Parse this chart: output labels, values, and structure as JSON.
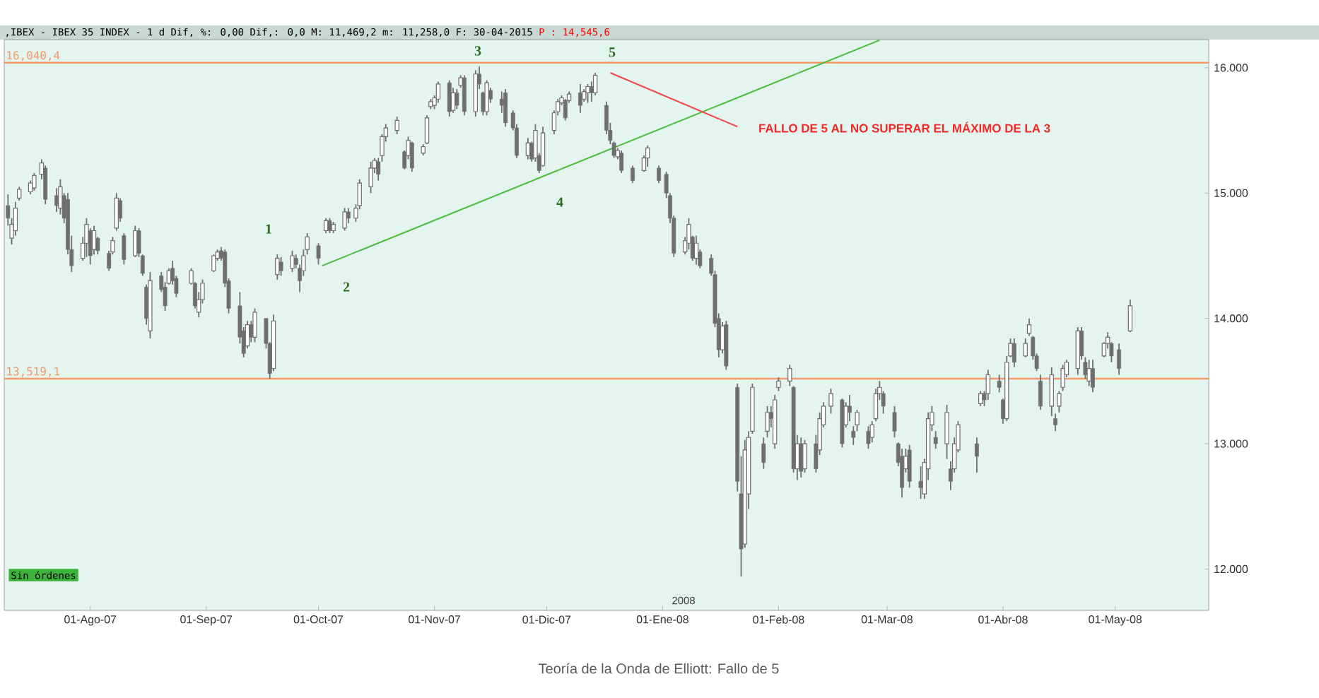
{
  "chart_data": {
    "type": "candlestick",
    "title": ",IBEX - IBEX 35 INDEX -  1 d Dif, %: 0,00 Dif,: 0,0 M: 11,469,2 m: 11,258,0 F: 30-04-2015",
    "subtitle": "P : 14,545,6",
    "color": "#6e6e6e",
    "x": [
      "2007-07-10",
      "2007-07-11",
      "2007-07-12",
      "2007-07-13",
      "2007-07-16",
      "2007-07-17",
      "2007-07-19",
      "2007-07-20",
      "2007-07-23",
      "2007-07-24",
      "2007-07-25",
      "2007-07-26",
      "2007-07-27",
      "2007-07-30",
      "2007-07-31",
      "2007-08-01",
      "2007-08-02",
      "2007-08-03",
      "2007-08-06",
      "2007-08-07",
      "2007-08-08",
      "2007-08-09",
      "2007-08-10",
      "2007-08-13",
      "2007-08-14",
      "2007-08-15",
      "2007-08-16",
      "2007-08-17",
      "2007-08-20",
      "2007-08-21",
      "2007-08-22",
      "2007-08-23",
      "2007-08-24",
      "2007-08-28",
      "2007-08-29",
      "2007-08-30",
      "2007-08-31",
      "2007-09-03",
      "2007-09-04",
      "2007-09-05",
      "2007-09-06",
      "2007-09-07",
      "2007-09-10",
      "2007-09-11",
      "2007-09-12",
      "2007-09-13",
      "2007-09-14",
      "2007-09-17",
      "2007-09-18",
      "2007-09-19",
      "2007-09-20",
      "2007-09-21",
      "2007-09-24",
      "2007-09-25",
      "2007-09-26",
      "2007-09-27",
      "2007-09-28",
      "2007-10-01",
      "2007-10-03",
      "2007-10-04",
      "2007-10-05",
      "2007-10-08",
      "2007-10-09",
      "2007-10-11",
      "2007-10-12",
      "2007-10-15",
      "2007-10-16",
      "2007-10-17",
      "2007-10-18",
      "2007-10-19",
      "2007-10-22",
      "2007-10-24",
      "2007-10-25",
      "2007-10-26",
      "2007-10-29",
      "2007-10-30",
      "2007-10-31",
      "2007-11-01",
      "2007-11-02",
      "2007-11-05",
      "2007-11-06",
      "2007-11-07",
      "2007-11-08",
      "2007-11-09",
      "2007-11-12",
      "2007-11-13",
      "2007-11-14",
      "2007-11-15",
      "2007-11-16",
      "2007-11-19",
      "2007-11-20",
      "2007-11-22",
      "2007-11-23",
      "2007-11-26",
      "2007-11-27",
      "2007-11-28",
      "2007-11-29",
      "2007-11-30",
      "2007-12-03",
      "2007-12-04",
      "2007-12-05",
      "2007-12-06",
      "2007-12-07",
      "2007-12-10",
      "2007-12-11",
      "2007-12-12",
      "2007-12-13",
      "2007-12-14",
      "2007-12-17",
      "2007-12-18",
      "2007-12-19",
      "2007-12-20",
      "2007-12-21",
      "2007-12-24",
      "2007-12-27",
      "2007-12-28",
      "2007-12-31",
      "2008-01-02",
      "2008-01-03",
      "2008-01-04",
      "2008-01-07",
      "2008-01-08",
      "2008-01-09",
      "2008-01-10",
      "2008-01-11",
      "2008-01-14",
      "2008-01-15",
      "2008-01-16",
      "2008-01-17",
      "2008-01-18",
      "2008-01-21",
      "2008-01-22",
      "2008-01-23",
      "2008-01-24",
      "2008-01-25",
      "2008-01-28",
      "2008-01-29",
      "2008-01-30",
      "2008-01-31",
      "2008-02-01",
      "2008-02-04",
      "2008-02-05",
      "2008-02-06",
      "2008-02-07",
      "2008-02-08",
      "2008-02-11",
      "2008-02-12",
      "2008-02-13",
      "2008-02-15",
      "2008-02-18",
      "2008-02-19",
      "2008-02-20",
      "2008-02-21",
      "2008-02-22",
      "2008-02-25",
      "2008-02-26",
      "2008-02-27",
      "2008-02-28",
      "2008-02-29",
      "2008-03-03",
      "2008-03-04",
      "2008-03-05",
      "2008-03-06",
      "2008-03-07",
      "2008-03-10",
      "2008-03-11",
      "2008-03-12",
      "2008-03-13",
      "2008-03-14",
      "2008-03-17",
      "2008-03-18",
      "2008-03-19",
      "2008-03-20",
      "2008-03-25",
      "2008-03-26",
      "2008-03-27",
      "2008-03-28",
      "2008-03-31",
      "2008-04-01",
      "2008-04-02",
      "2008-04-03",
      "2008-04-04",
      "2008-04-07",
      "2008-04-08",
      "2008-04-09",
      "2008-04-10",
      "2008-04-11",
      "2008-04-14",
      "2008-04-15",
      "2008-04-16",
      "2008-04-17",
      "2008-04-18",
      "2008-04-21",
      "2008-04-22",
      "2008-04-23",
      "2008-04-24",
      "2008-04-25",
      "2008-04-28",
      "2008-04-29",
      "2008-04-30",
      "2008-05-02",
      "2008-05-05"
    ],
    "ohlc": [
      [
        14.9,
        14.99,
        14.74,
        14.8
      ],
      [
        14.64,
        14.8,
        14.59,
        14.75
      ],
      [
        14.7,
        14.93,
        14.66,
        14.88
      ],
      [
        14.96,
        15.05,
        14.94,
        15.03
      ],
      [
        15.01,
        15.1,
        14.99,
        15.08
      ],
      [
        15.04,
        15.16,
        15.02,
        15.14
      ],
      [
        15.15,
        15.27,
        15.11,
        15.24
      ],
      [
        15.2,
        15.22,
        14.91,
        14.95
      ],
      [
        14.98,
        15.04,
        14.85,
        14.9
      ],
      [
        14.88,
        15.11,
        14.83,
        15.05
      ],
      [
        14.98,
        15,
        14.76,
        14.8
      ],
      [
        14.95,
        15,
        14.51,
        14.55
      ],
      [
        14.55,
        14.66,
        14.37,
        14.42
      ],
      [
        14.48,
        14.65,
        14.46,
        14.6
      ],
      [
        14.6,
        14.8,
        14.49,
        14.75
      ],
      [
        14.7,
        14.72,
        14.43,
        14.5
      ],
      [
        14.55,
        14.74,
        14.51,
        14.7
      ],
      [
        14.64,
        14.65,
        14.51,
        14.54
      ],
      [
        14.52,
        14.54,
        14.38,
        14.4
      ],
      [
        14.53,
        14.65,
        14.51,
        14.62
      ],
      [
        14.72,
        15,
        14.7,
        14.96
      ],
      [
        14.94,
        14.96,
        14.77,
        14.8
      ],
      [
        14.66,
        14.68,
        14.43,
        14.47
      ],
      [
        14.5,
        14.74,
        14.49,
        14.7
      ],
      [
        14.7,
        14.72,
        14.49,
        14.52
      ],
      [
        14.5,
        14.51,
        14.34,
        14.36
      ],
      [
        14.25,
        14.27,
        13.95,
        14
      ],
      [
        13.9,
        14.37,
        13.84,
        14.3
      ],
      [
        14.34,
        14.37,
        14.21,
        14.23
      ],
      [
        14.25,
        14.29,
        14.06,
        14.1
      ],
      [
        14.28,
        14.4,
        14.27,
        14.38
      ],
      [
        14.4,
        14.46,
        14.27,
        14.3
      ],
      [
        14.32,
        14.34,
        14.17,
        14.2
      ],
      [
        14.28,
        14.4,
        14.27,
        14.38
      ],
      [
        14.28,
        14.29,
        14.08,
        14.1
      ],
      [
        14.05,
        14.21,
        14.01,
        14.15
      ],
      [
        14.15,
        14.31,
        14.12,
        14.28
      ],
      [
        14.38,
        14.51,
        14.37,
        14.5
      ],
      [
        14.48,
        14.55,
        14.46,
        14.53
      ],
      [
        14.54,
        14.57,
        14.46,
        14.48
      ],
      [
        14.53,
        14.55,
        14.25,
        14.28
      ],
      [
        14.3,
        14.32,
        14.04,
        14.08
      ],
      [
        14.1,
        14.21,
        13.8,
        13.85
      ],
      [
        13.9,
        13.93,
        13.69,
        13.72
      ],
      [
        13.78,
        13.98,
        13.76,
        13.95
      ],
      [
        13.95,
        13.98,
        13.81,
        13.85
      ],
      [
        13.85,
        14.08,
        13.81,
        14.05
      ],
      [
        14,
        14,
        13.76,
        13.8
      ],
      [
        13.8,
        13.81,
        13.52,
        13.56
      ],
      [
        13.6,
        14.03,
        13.58,
        13.98
      ],
      [
        14.35,
        14.51,
        14.31,
        14.48
      ],
      [
        14.45,
        14.49,
        14.34,
        14.38
      ],
      [
        14.4,
        14.54,
        14.37,
        14.5
      ],
      [
        14.48,
        14.51,
        14.4,
        14.43
      ],
      [
        14.4,
        14.43,
        14.21,
        14.3
      ],
      [
        14.38,
        14.55,
        14.34,
        14.5
      ],
      [
        14.55,
        14.68,
        14.51,
        14.65
      ],
      [
        14.58,
        14.6,
        14.43,
        14.48
      ],
      [
        14.7,
        14.8,
        14.68,
        14.78
      ],
      [
        14.78,
        14.8,
        14.68,
        14.7
      ],
      [
        14.7,
        14.77,
        14.68,
        14.75
      ],
      [
        14.72,
        14.88,
        14.7,
        14.85
      ],
      [
        14.85,
        14.88,
        14.76,
        14.8
      ],
      [
        14.8,
        14.91,
        14.77,
        14.88
      ],
      [
        14.9,
        15.11,
        14.87,
        15.08
      ],
      [
        15.05,
        15.25,
        15,
        15.2
      ],
      [
        15.2,
        15.28,
        15.16,
        15.26
      ],
      [
        15.25,
        15.28,
        15.1,
        15.15
      ],
      [
        15.3,
        15.47,
        15.25,
        15.45
      ],
      [
        15.45,
        15.55,
        15.41,
        15.52
      ],
      [
        15.5,
        15.61,
        15.47,
        15.58
      ],
      [
        15.33,
        15.34,
        15.19,
        15.2
      ],
      [
        15.3,
        15.45,
        15.27,
        15.42
      ],
      [
        15.4,
        15.41,
        15.17,
        15.2
      ],
      [
        15.32,
        15.39,
        15.3,
        15.37
      ],
      [
        15.4,
        15.62,
        15.39,
        15.6
      ],
      [
        15.69,
        15.75,
        15.67,
        15.73
      ],
      [
        15.7,
        15.78,
        15.67,
        15.76
      ],
      [
        15.75,
        15.89,
        15.72,
        15.87
      ],
      [
        15.88,
        15.9,
        15.61,
        15.65
      ],
      [
        15.66,
        15.84,
        15.64,
        15.8
      ],
      [
        15.8,
        15.83,
        15.67,
        15.7
      ],
      [
        15.86,
        15.94,
        15.84,
        15.92
      ],
      [
        15.92,
        15.94,
        15.62,
        15.65
      ],
      [
        15.65,
        15.98,
        15.61,
        15.95
      ],
      [
        15.95,
        16.01,
        15.83,
        15.87
      ],
      [
        15.8,
        15.81,
        15.62,
        15.65
      ],
      [
        15.65,
        15.9,
        15.62,
        15.88
      ],
      [
        15.82,
        15.84,
        15.72,
        15.75
      ],
      [
        15.75,
        15.81,
        15.64,
        15.7
      ],
      [
        15.8,
        15.83,
        15.53,
        15.56
      ],
      [
        15.64,
        15.66,
        15.5,
        15.52
      ],
      [
        15.52,
        15.55,
        15.28,
        15.3
      ],
      [
        15.3,
        15.44,
        15.27,
        15.4
      ],
      [
        15.4,
        15.41,
        15.25,
        15.27
      ],
      [
        15.28,
        15.55,
        15.25,
        15.5
      ],
      [
        15.3,
        15.32,
        15.16,
        15.18
      ],
      [
        15.22,
        15.53,
        15.21,
        15.48
      ],
      [
        15.5,
        15.66,
        15.47,
        15.64
      ],
      [
        15.65,
        15.75,
        15.62,
        15.73
      ],
      [
        15.72,
        15.78,
        15.7,
        15.76
      ],
      [
        15.74,
        15.75,
        15.58,
        15.6
      ],
      [
        15.74,
        15.81,
        15.72,
        15.79
      ],
      [
        15.8,
        15.87,
        15.64,
        15.7
      ],
      [
        15.75,
        15.83,
        15.73,
        15.81
      ],
      [
        15.8,
        15.87,
        15.72,
        15.85
      ],
      [
        15.85,
        15.89,
        15.73,
        15.8
      ],
      [
        15.8,
        15.96,
        15.78,
        15.94
      ],
      [
        15.7,
        15.73,
        15.47,
        15.5
      ],
      [
        15.5,
        15.56,
        15.39,
        15.42
      ],
      [
        15.4,
        15.41,
        15.28,
        15.3
      ],
      [
        15.29,
        15.36,
        15.27,
        15.34
      ],
      [
        15.32,
        15.34,
        15.16,
        15.18
      ],
      [
        15.2,
        15.22,
        15.08,
        15.1
      ],
      [
        15.18,
        15.3,
        15.17,
        15.28
      ],
      [
        15.28,
        15.38,
        15.21,
        15.36
      ],
      [
        15.2,
        15.22,
        15.08,
        15.1
      ],
      [
        15.15,
        15.17,
        14.96,
        15
      ],
      [
        14.98,
        15,
        14.76,
        14.8
      ],
      [
        14.8,
        14.82,
        14.49,
        14.52
      ],
      [
        14.53,
        14.65,
        14.51,
        14.62
      ],
      [
        14.6,
        14.8,
        14.55,
        14.75
      ],
      [
        14.65,
        14.66,
        14.46,
        14.48
      ],
      [
        14.48,
        14.66,
        14.43,
        14.6
      ],
      [
        14.53,
        14.55,
        14.4,
        14.42
      ],
      [
        14.48,
        14.51,
        14.34,
        14.36
      ],
      [
        14.35,
        14.38,
        13.93,
        13.96
      ],
      [
        14,
        14.04,
        13.69,
        13.75
      ],
      [
        13.75,
        13.97,
        13.72,
        13.94
      ],
      [
        13.95,
        13.98,
        13.59,
        13.62
      ],
      [
        13.45,
        13.48,
        12.62,
        12.7
      ],
      [
        12.6,
        12.9,
        11.94,
        12.16
      ],
      [
        12.2,
        13.03,
        12.17,
        12.95
      ],
      [
        12.6,
        13.1,
        12.48,
        13.05
      ],
      [
        13.1,
        13.48,
        13.08,
        13.45
      ],
      [
        13,
        13.05,
        12.8,
        12.85
      ],
      [
        13.1,
        13.3,
        13.05,
        13.25
      ],
      [
        13.25,
        13.3,
        13.13,
        13.2
      ],
      [
        13,
        13.39,
        12.96,
        13.35
      ],
      [
        13.45,
        13.53,
        13.42,
        13.5
      ],
      [
        13.5,
        13.63,
        13.46,
        13.6
      ],
      [
        13.45,
        13.46,
        12.77,
        12.8
      ],
      [
        12.8,
        13.07,
        12.71,
        13
      ],
      [
        13,
        13.05,
        12.73,
        12.78
      ],
      [
        12.8,
        13.03,
        12.77,
        13
      ],
      [
        13,
        13.07,
        12.77,
        12.8
      ],
      [
        12.95,
        13.25,
        12.91,
        13.2
      ],
      [
        13.15,
        13.33,
        13.13,
        13.3
      ],
      [
        13.3,
        13.44,
        13.24,
        13.4
      ],
      [
        13.35,
        13.36,
        12.97,
        13
      ],
      [
        13.15,
        13.33,
        13.13,
        13.3
      ],
      [
        13.3,
        13.39,
        13.18,
        13.25
      ],
      [
        13.1,
        13.14,
        12.99,
        13.05
      ],
      [
        13.15,
        13.27,
        13.1,
        13.25
      ],
      [
        13.1,
        13.14,
        12.96,
        13
      ],
      [
        13.05,
        13.18,
        13.01,
        13.15
      ],
      [
        13.2,
        13.44,
        13.18,
        13.4
      ],
      [
        13.4,
        13.5,
        13.35,
        13.45
      ],
      [
        13.4,
        13.42,
        13.24,
        13.3
      ],
      [
        13.25,
        13.3,
        13.05,
        13.1
      ],
      [
        13,
        13.01,
        12.82,
        12.85
      ],
      [
        12.9,
        12.96,
        12.57,
        12.65
      ],
      [
        12.8,
        12.96,
        12.77,
        12.9
      ],
      [
        12.95,
        12.99,
        12.65,
        12.7
      ],
      [
        12.7,
        12.82,
        12.56,
        12.65
      ],
      [
        12.6,
        12.88,
        12.56,
        12.85
      ],
      [
        12.8,
        13.25,
        12.71,
        13.2
      ],
      [
        13.15,
        13.3,
        13.1,
        13.25
      ],
      [
        13.05,
        13.1,
        12.96,
        13
      ],
      [
        13,
        13.31,
        12.88,
        13.25
      ],
      [
        12.8,
        12.86,
        12.63,
        12.7
      ],
      [
        12.8,
        13.05,
        12.77,
        13
      ],
      [
        12.95,
        13.18,
        12.93,
        13.15
      ],
      [
        13,
        13.05,
        12.77,
        12.9
      ],
      [
        13.32,
        13.42,
        13.3,
        13.4
      ],
      [
        13.4,
        13.42,
        13.3,
        13.35
      ],
      [
        13.4,
        13.59,
        13.35,
        13.55
      ],
      [
        13.5,
        13.55,
        13.41,
        13.45
      ],
      [
        13.35,
        13.36,
        13.16,
        13.2
      ],
      [
        13.2,
        13.7,
        13.18,
        13.65
      ],
      [
        13.7,
        13.84,
        13.69,
        13.8
      ],
      [
        13.8,
        13.84,
        13.61,
        13.65
      ],
      [
        13.7,
        13.84,
        13.69,
        13.8
      ],
      [
        13.88,
        14,
        13.86,
        13.95
      ],
      [
        13.85,
        13.86,
        13.67,
        13.7
      ],
      [
        13.7,
        13.72,
        13.58,
        13.6
      ],
      [
        13.5,
        13.55,
        13.27,
        13.3
      ],
      [
        13.3,
        13.61,
        13.22,
        13.55
      ],
      [
        13.2,
        13.24,
        13.1,
        13.15
      ],
      [
        13.3,
        13.42,
        13.25,
        13.4
      ],
      [
        13.45,
        13.63,
        13.42,
        13.6
      ],
      [
        13.55,
        13.67,
        13.53,
        13.65
      ],
      [
        13.6,
        13.93,
        13.55,
        13.9
      ],
      [
        13.9,
        13.93,
        13.67,
        13.7
      ],
      [
        13.65,
        13.69,
        13.52,
        13.55
      ],
      [
        13.5,
        13.67,
        13.46,
        13.6
      ],
      [
        13.6,
        13.67,
        13.41,
        13.45
      ],
      [
        13.7,
        13.81,
        13.69,
        13.8
      ],
      [
        13.8,
        13.89,
        13.76,
        13.85
      ],
      [
        13.8,
        13.81,
        13.65,
        13.7
      ],
      [
        13.75,
        13.8,
        13.55,
        13.6
      ],
      [
        13.9,
        14.15,
        13.89,
        14.1
      ]
    ],
    "series": [
      {
        "type": "line",
        "color": "#4cbb3c",
        "x": [
          "2007-10-02",
          "2008-02-28"
        ],
        "values": [
          14.42,
          16.22
        ]
      },
      {
        "type": "line",
        "color": "#f04848",
        "x": [
          "2007-12-18",
          "2008-01-21"
        ],
        "values": [
          15.96,
          15.53
        ]
      }
    ],
    "xlim": [
      "2007-07-09",
      "2008-05-26"
    ],
    "ylim": [
      11.67,
      16.225
    ],
    "xticks": [
      {
        "value": "2007-08-01",
        "label": "01-Ago-07"
      },
      {
        "value": "2007-09-01",
        "label": "01-Sep-07"
      },
      {
        "value": "2007-10-01",
        "label": "01-Oct-07"
      },
      {
        "value": "2007-11-01",
        "label": "01-Nov-07"
      },
      {
        "value": "2007-12-01",
        "label": "01-Dic-07"
      },
      {
        "value": "2008-01-01",
        "label": "01-Ene-08"
      },
      {
        "value": "2008-02-01",
        "label": "01-Feb-08"
      },
      {
        "value": "2008-03-01",
        "label": "01-Mar-08"
      },
      {
        "value": "2008-04-01",
        "label": "01-Abr-08"
      },
      {
        "value": "2008-05-01",
        "label": "01-May-08"
      }
    ],
    "yticks": [
      {
        "value": 12,
        "label": "12.000"
      },
      {
        "value": 13,
        "label": "13.000"
      },
      {
        "value": 14,
        "label": "14.000"
      },
      {
        "value": 15,
        "label": "15.000"
      },
      {
        "value": 16,
        "label": "16.000"
      }
    ],
    "ref_lines": [
      {
        "axis": "y",
        "value": 16.0404,
        "label": "16,040,4",
        "color": "#f49a6a"
      },
      {
        "axis": "y",
        "value": 13.5191,
        "label": "13,519,1",
        "color": "#f49a6a"
      }
    ],
    "annotations": [
      "1",
      "2",
      "3",
      "4",
      "5",
      "FALLO DE 5 AL NO SUPERAR EL MÁXIMO DE LA 3",
      "2008",
      "Sin órdenes",
      "Teoría de la Onda de Elliott: Fallo de 5"
    ],
    "grid": false
  }
}
